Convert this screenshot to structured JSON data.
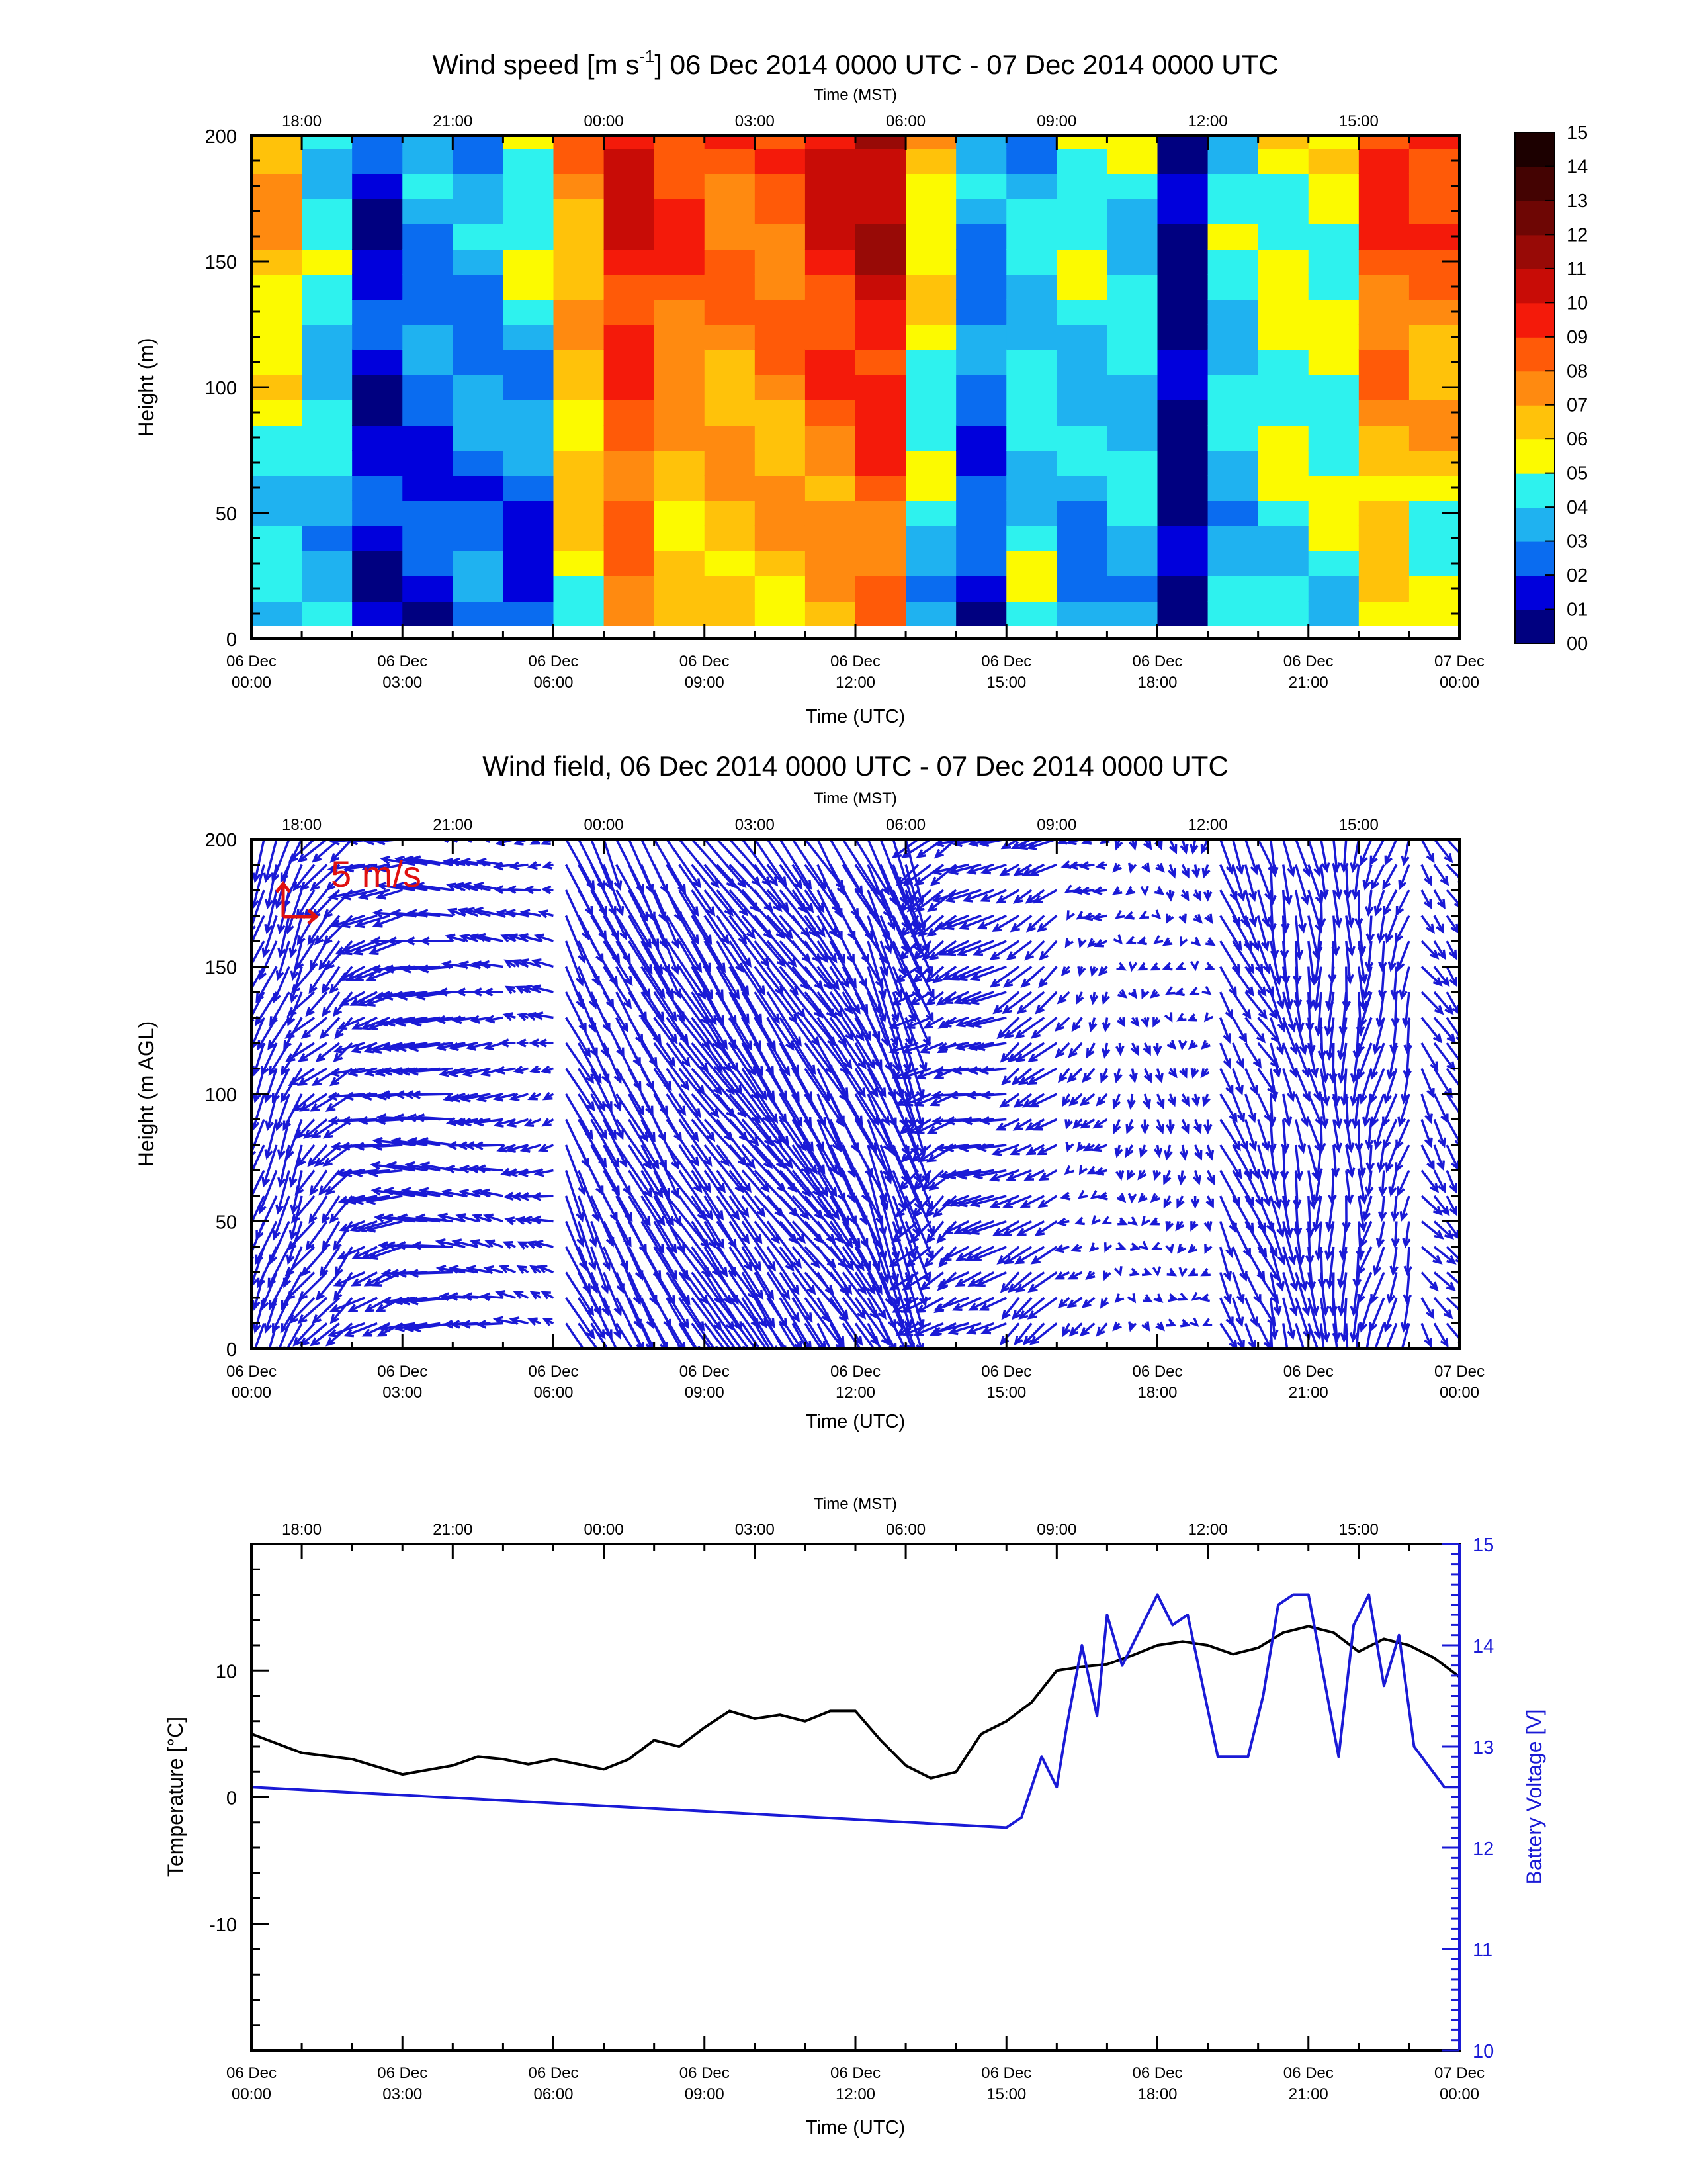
{
  "colors": {
    "accent_blue": "#1a1ad6",
    "temperature_line": "#000000",
    "scale_arrow": "#e01010",
    "colorbar": [
      "#000080",
      "#0000dc",
      "#0a6cf0",
      "#1fb2f0",
      "#2ef2ee",
      "#fcfa00",
      "#ffc20a",
      "#ff8a10",
      "#ff5a08",
      "#f41a0a",
      "#c80c06",
      "#980a06",
      "#6e0604",
      "#440302",
      "#1c0000"
    ]
  },
  "chart_data": [
    {
      "type": "heatmap",
      "title": "Wind speed [m s",
      "title_sup": "-1",
      "title_rest": "] 06 Dec 2014 0000 UTC - 07 Dec 2014 0000 UTC",
      "xlabel": "Time (UTC)",
      "x2label": "Time (MST)",
      "ylabel": "Height (m)",
      "ylim": [
        0,
        200
      ],
      "yticks": [
        "0",
        "50",
        "100",
        "150",
        "200"
      ],
      "x_bottom_ticks": [
        [
          "06 Dec",
          "00:00"
        ],
        [
          "06 Dec",
          "03:00"
        ],
        [
          "06 Dec",
          "06:00"
        ],
        [
          "06 Dec",
          "09:00"
        ],
        [
          "06 Dec",
          "12:00"
        ],
        [
          "06 Dec",
          "15:00"
        ],
        [
          "06 Dec",
          "18:00"
        ],
        [
          "06 Dec",
          "21:00"
        ],
        [
          "07 Dec",
          "00:00"
        ]
      ],
      "x_top_ticks": [
        "18:00",
        "21:00",
        "00:00",
        "03:00",
        "06:00",
        "09:00",
        "12:00",
        "15:00"
      ],
      "colorbar_labels": [
        "00",
        "01",
        "02",
        "03",
        "04",
        "05",
        "06",
        "07",
        "08",
        "09",
        "10",
        "11",
        "12",
        "13",
        "14",
        "15"
      ],
      "heights_m": [
        10,
        20,
        30,
        40,
        50,
        60,
        70,
        80,
        90,
        100,
        110,
        120,
        130,
        140,
        150,
        160,
        170,
        180,
        190,
        200
      ],
      "hours_utc": [
        0.5,
        1.5,
        2.5,
        3.5,
        4.5,
        5.5,
        6.5,
        7.5,
        8.5,
        9.5,
        10.5,
        11.5,
        12.5,
        13.5,
        14.5,
        15.5,
        16.5,
        17.5,
        18.5,
        19.5,
        20.5,
        21.5,
        22.5,
        23.5
      ],
      "speed_low_m_s": [
        3,
        3,
        1,
        1,
        2,
        1,
        5,
        7,
        5,
        6,
        6,
        6,
        7,
        3,
        1,
        4,
        2,
        3,
        0,
        3,
        4,
        4,
        5,
        4
      ],
      "speed_high_m_s": [
        7,
        4,
        1,
        3,
        3,
        5,
        7,
        10,
        9,
        8,
        8,
        10,
        11,
        6,
        3,
        3,
        5,
        4,
        0,
        4,
        5,
        5,
        9,
        9
      ]
    },
    {
      "type": "quiver",
      "title": "Wind field, 06 Dec 2014 0000 UTC - 07 Dec 2014 0000 UTC",
      "xlabel": "Time (UTC)",
      "x2label": "Time (MST)",
      "ylabel": "Height (m AGL)",
      "ylim": [
        0,
        200
      ],
      "yticks": [
        "0",
        "50",
        "100",
        "150",
        "200"
      ],
      "scale_label": "5 m/s",
      "hour_bands": [
        0.25,
        1.25,
        2.25,
        3.25,
        4.25,
        5.25,
        6.25,
        7.25,
        8.25,
        9.25,
        10.25,
        11.25,
        12.25,
        13.25,
        14.25,
        15.25,
        16.25,
        17.25,
        18.25,
        19.25,
        20.25,
        21.25,
        22.25,
        23.25
      ],
      "u_m_s": [
        -2,
        -3,
        -4,
        -5,
        -3,
        -2,
        3,
        4,
        5,
        5,
        5,
        4,
        3,
        -3,
        -4,
        -3,
        -1,
        0,
        0,
        2,
        1,
        0,
        -1,
        2
      ],
      "v_m_s": [
        -5,
        -3,
        -1,
        0,
        0,
        0,
        -6,
        -7,
        -7,
        -7,
        -7,
        -7,
        -8,
        -2,
        -1,
        -2,
        -1,
        -1,
        -1,
        -4,
        -5,
        -5,
        -4,
        -3
      ]
    },
    {
      "type": "line",
      "xlabel": "Time (UTC)",
      "x2label": "Time (MST)",
      "ylabel": "Temperature [°C]",
      "y2label": "Battery Voltage [V]",
      "ylim": [
        -20,
        20
      ],
      "yticks": [
        "-10",
        "0",
        "10"
      ],
      "y2lim": [
        10,
        15
      ],
      "y2ticks": [
        "10",
        "11",
        "12",
        "13",
        "14",
        "15"
      ],
      "series": [
        {
          "axis": "left",
          "x": [
            0,
            1,
            2,
            3,
            4,
            4.5,
            5,
            5.5,
            6,
            7,
            7.5,
            8,
            8.5,
            9,
            9.5,
            10,
            10.5,
            11,
            11.5,
            12,
            12.5,
            13,
            13.5,
            14,
            14.5,
            15,
            15.5,
            16,
            16.5,
            17,
            17.5,
            18,
            18.5,
            19,
            19.5,
            20,
            20.5,
            21,
            21.5,
            22,
            22.5,
            23,
            23.5,
            24
          ],
          "y": [
            5,
            3.5,
            3,
            1.8,
            2.5,
            3.2,
            3,
            2.6,
            3,
            2.2,
            3,
            4.5,
            4,
            5.5,
            6.8,
            6.2,
            6.5,
            6,
            6.8,
            6.8,
            4.5,
            2.5,
            1.5,
            2,
            5,
            6,
            7.5,
            10,
            10.3,
            10.5,
            11.2,
            12,
            12.3,
            12,
            11.3,
            11.8,
            13,
            13.5,
            13,
            11.5,
            12.5,
            12,
            11,
            9.5
          ]
        },
        {
          "axis": "right",
          "x": [
            0,
            15,
            15.3,
            15.7,
            16,
            16.2,
            16.5,
            16.8,
            17,
            17.3,
            17.6,
            18,
            18.3,
            18.6,
            18.9,
            19.2,
            19.5,
            19.8,
            20.1,
            20.4,
            20.7,
            21,
            21.3,
            21.6,
            21.9,
            22.2,
            22.5,
            22.8,
            23.1,
            23.4,
            23.7,
            24
          ],
          "y": [
            12.6,
            12.2,
            12.3,
            12.9,
            12.6,
            13.2,
            14,
            13.3,
            14.3,
            13.8,
            14.1,
            14.5,
            14.2,
            14.3,
            13.6,
            12.9,
            12.9,
            12.9,
            13.5,
            14.4,
            14.5,
            14.5,
            13.7,
            12.9,
            14.2,
            14.5,
            13.6,
            14.1,
            13.0,
            12.8,
            12.6,
            12.6
          ]
        }
      ]
    }
  ]
}
